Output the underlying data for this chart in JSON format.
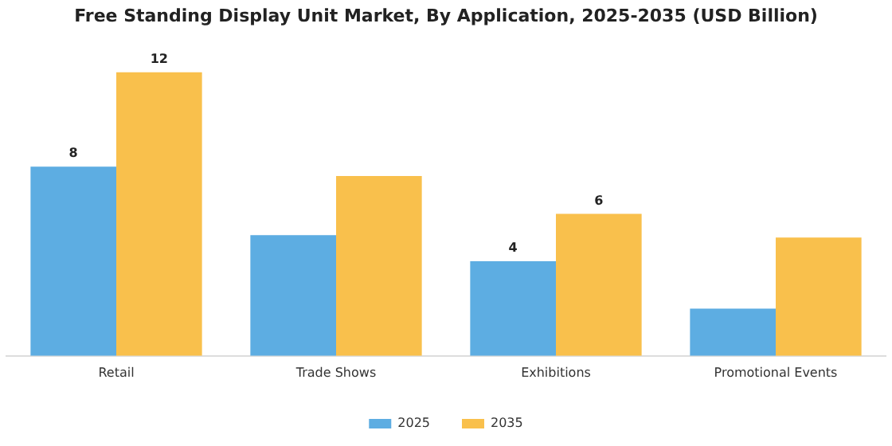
{
  "chart_data": {
    "type": "bar",
    "title": "Free Standing Display Unit Market, By Application, 2025-2035 (USD Billion)",
    "categories": [
      "Retail",
      "Trade Shows",
      "Exhibitions",
      "Promotional Events"
    ],
    "series": [
      {
        "name": "2025",
        "color": "#5dade2",
        "values": [
          8,
          5.1,
          4,
          2
        ],
        "value_labels": [
          "8",
          null,
          "4",
          null
        ]
      },
      {
        "name": "2035",
        "color": "#f9c04c",
        "values": [
          12,
          7.6,
          6,
          5
        ],
        "value_labels": [
          "12",
          null,
          "6",
          null
        ]
      }
    ],
    "legend": "bottom",
    "grid": false
  }
}
